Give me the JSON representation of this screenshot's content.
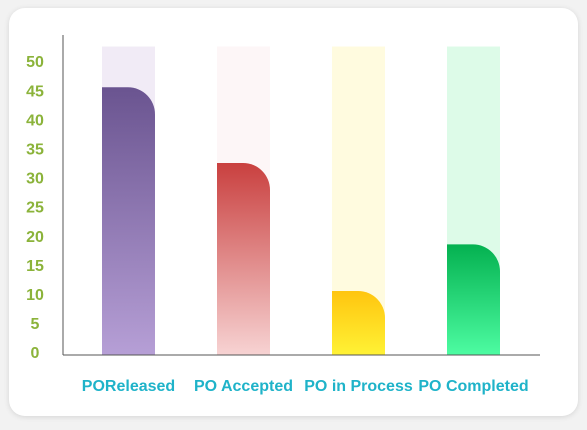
{
  "chart_data": {
    "type": "bar",
    "categories": [
      "POReleased",
      "PO Accepted",
      "PO in Process",
      "PO Completed"
    ],
    "values": [
      46,
      33,
      11,
      19
    ],
    "ylim": [
      0,
      53
    ],
    "yticks": [
      0,
      5,
      10,
      15,
      20,
      25,
      30,
      35,
      40,
      45,
      50
    ],
    "grid": false,
    "legend": "none",
    "colors": {
      "ytick_text": "#8bb33a",
      "xtick_text": "#1fb3c9",
      "axis": "#555555"
    },
    "bar_styles": [
      {
        "bg": "#f1ebf6",
        "top": "#6a5490",
        "bottom": "#b69fd6"
      },
      {
        "bg": "#fdf6f7",
        "top": "#c9403f",
        "bottom": "#f7d3d3"
      },
      {
        "bg": "#fffbdf",
        "top": "#ffc50f",
        "bottom": "#fff235"
      },
      {
        "bg": "#ddfbe8",
        "top": "#04b150",
        "bottom": "#4dfca2"
      }
    ]
  }
}
